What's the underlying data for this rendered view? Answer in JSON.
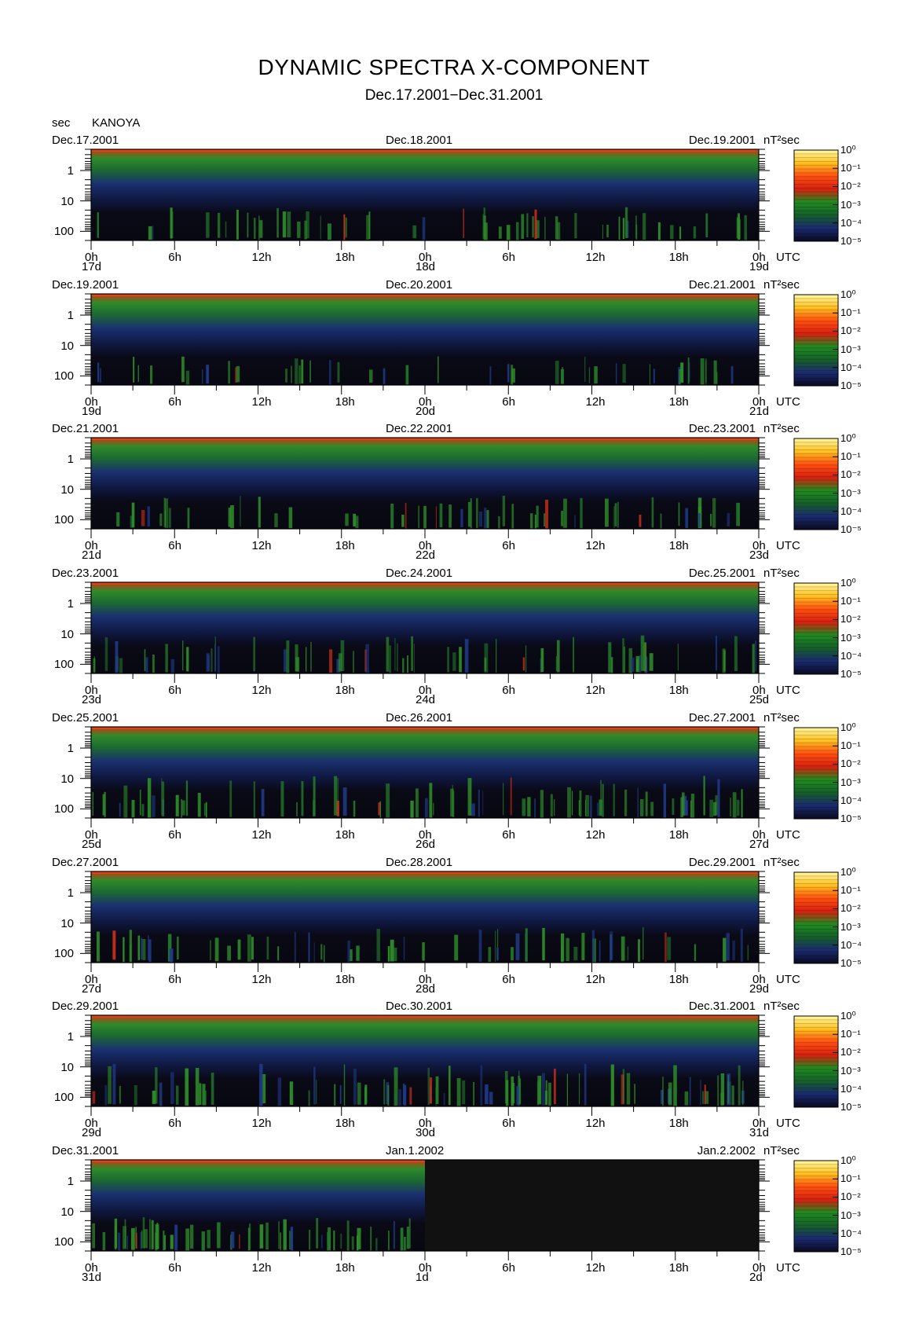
{
  "header": {
    "title": "DYNAMIC SPECTRA X-COMPONENT",
    "subtitle": "Dec.17.2001−Dec.31.2001",
    "period_unit": "sec",
    "station": "KANOYA"
  },
  "colorbar": {
    "unit": "nT²sec",
    "labels": [
      "10⁰",
      "10⁻¹",
      "10⁻²",
      "10⁻³",
      "10⁻⁴",
      "10⁻⁵"
    ],
    "colors": [
      "#fff8a0",
      "#ffc020",
      "#ff5010",
      "#d82010",
      "#1f8a1f",
      "#16602a",
      "#1a2a70",
      "#0a0a20"
    ]
  },
  "chart_data": {
    "type": "heatmap",
    "x_ticks": [
      "0h",
      "6h",
      "12h",
      "18h",
      "0h",
      "6h",
      "12h",
      "18h",
      "0h"
    ],
    "x_unit": "UTC",
    "y_ticks": [
      "1",
      "10",
      "100"
    ],
    "y_scale": "log",
    "panels": [
      {
        "start": "Dec.17.2001",
        "mid": "Dec.18.2001",
        "end": "Dec.19.2001",
        "days": [
          "17d",
          "18d",
          "19d"
        ],
        "activity": 0.45
      },
      {
        "start": "Dec.19.2001",
        "mid": "Dec.20.2001",
        "end": "Dec.21.2001",
        "days": [
          "19d",
          "20d",
          "21d"
        ],
        "activity": 0.35
      },
      {
        "start": "Dec.21.2001",
        "mid": "Dec.22.2001",
        "end": "Dec.23.2001",
        "days": [
          "21d",
          "22d",
          "23d"
        ],
        "activity": 0.45
      },
      {
        "start": "Dec.23.2001",
        "mid": "Dec.24.2001",
        "end": "Dec.25.2001",
        "days": [
          "23d",
          "24d",
          "25d"
        ],
        "activity": 0.55
      },
      {
        "start": "Dec.25.2001",
        "mid": "Dec.26.2001",
        "end": "Dec.27.2001",
        "days": [
          "25d",
          "26d",
          "27d"
        ],
        "activity": 0.65
      },
      {
        "start": "Dec.27.2001",
        "mid": "Dec.28.2001",
        "end": "Dec.29.2001",
        "days": [
          "27d",
          "28d",
          "29d"
        ],
        "activity": 0.5
      },
      {
        "start": "Dec.29.2001",
        "mid": "Dec.30.2001",
        "end": "Dec.31.2001",
        "days": [
          "29d",
          "30d",
          "31d"
        ],
        "activity": 0.7
      },
      {
        "start": "Dec.31.2001",
        "mid": "Jan.1.2002",
        "end": "Jan.2.2002",
        "days": [
          "31d",
          "1d",
          "2d"
        ],
        "activity": 0.45,
        "data_fraction": 0.5
      }
    ]
  }
}
